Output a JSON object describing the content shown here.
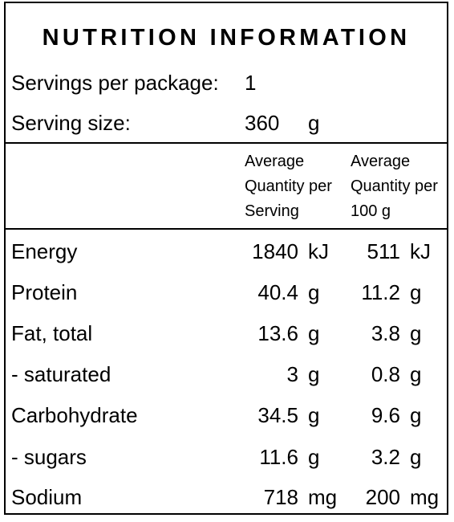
{
  "title": "NUTRITION INFORMATION",
  "servings": {
    "label": "Servings per package:",
    "value": "1"
  },
  "serving_size": {
    "label": "Serving size:",
    "value": "360",
    "unit": "g"
  },
  "columns": {
    "per_serving": [
      "Average",
      "Quantity per",
      "Serving"
    ],
    "per_100g": [
      "Average",
      "Quantity per",
      "100 g"
    ]
  },
  "nutrients": [
    {
      "name": "Energy",
      "serving": "1840",
      "serving_unit": "kJ",
      "per100": "511",
      "per100_unit": "kJ"
    },
    {
      "name": "Protein",
      "serving": "40.4",
      "serving_unit": "g",
      "per100": "11.2",
      "per100_unit": "g"
    },
    {
      "name": "Fat, total",
      "serving": "13.6",
      "serving_unit": "g",
      "per100": "3.8",
      "per100_unit": "g"
    },
    {
      "name": "- saturated",
      "serving": "3",
      "serving_unit": "g",
      "per100": "0.8",
      "per100_unit": "g"
    },
    {
      "name": "Carbohydrate",
      "serving": "34.5",
      "serving_unit": "g",
      "per100": "9.6",
      "per100_unit": "g"
    },
    {
      "name": "- sugars",
      "serving": "11.6",
      "serving_unit": "g",
      "per100": "3.2",
      "per100_unit": "g"
    },
    {
      "name": "Sodium",
      "serving": "718",
      "serving_unit": "mg",
      "per100": "200",
      "per100_unit": "mg"
    }
  ]
}
